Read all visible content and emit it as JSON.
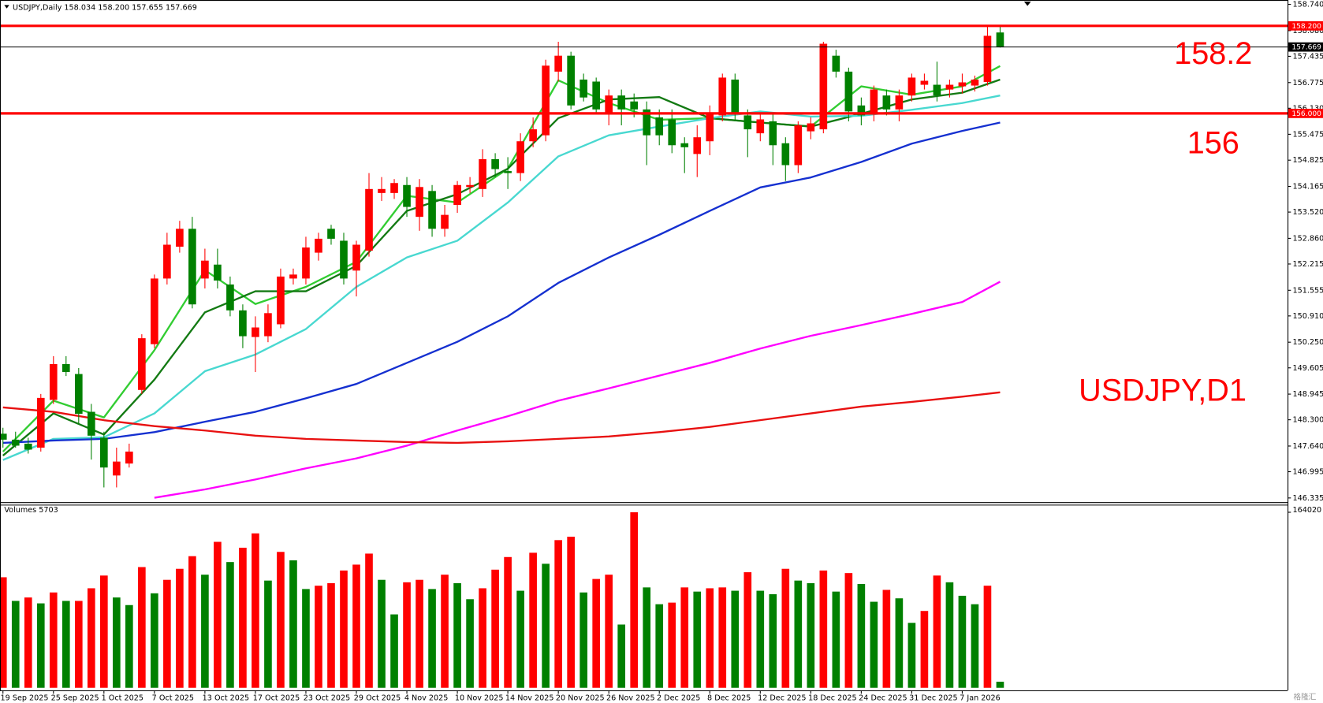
{
  "chart_data": {
    "type": "candlestick",
    "header": {
      "symbol": "USDJPY,Daily",
      "ohlc": [
        "158.034",
        "158.200",
        "157.655",
        "157.669"
      ]
    },
    "annotations": [
      "158.2",
      "156",
      "USDJPY,D1"
    ],
    "watermark": "格隆汇",
    "up_color": "#ff0000",
    "down_color": "#008000",
    "categories": [
      "19 Sep 2025",
      null,
      null,
      null,
      "25 Sep 2025",
      null,
      null,
      null,
      "1 Oct 2025",
      null,
      null,
      null,
      "7 Oct 2025",
      null,
      null,
      null,
      "13 Oct 2025",
      null,
      null,
      null,
      "17 Oct 2025",
      null,
      null,
      null,
      "23 Oct 2025",
      null,
      null,
      null,
      "29 Oct 2025",
      null,
      null,
      null,
      "4 Nov 2025",
      null,
      null,
      null,
      "10 Nov 2025",
      null,
      null,
      null,
      "14 Nov 2025",
      null,
      null,
      null,
      "20 Nov 2025",
      null,
      null,
      null,
      "26 Nov 2025",
      null,
      null,
      null,
      "2 Dec 2025",
      null,
      null,
      null,
      "8 Dec 2025",
      null,
      null,
      null,
      "12 Dec 2025",
      null,
      null,
      null,
      "18 Dec 2025",
      null,
      null,
      null,
      "24 Dec 2025",
      null,
      null,
      null,
      "31 Dec 2025",
      null,
      null,
      null,
      "7 Jan 2026",
      null,
      null,
      null
    ],
    "candles": {
      "open": [
        147.95,
        147.8,
        147.7,
        147.6,
        148.8,
        149.7,
        149.45,
        148.5,
        147.85,
        146.9,
        147.2,
        149.05,
        150.2,
        151.85,
        152.65,
        153.1,
        151.85,
        152.2,
        151.7,
        151.05,
        150.38,
        150.4,
        150.7,
        151.85,
        151.85,
        152.5,
        153.1,
        152.8,
        152.05,
        152.55,
        154.0,
        154.0,
        154.2,
        153.4,
        154.05,
        153.1,
        153.7,
        154.15,
        154.1,
        154.85,
        154.55,
        154.5,
        155.3,
        155.45,
        157.05,
        157.45,
        156.85,
        156.8,
        156.0,
        156.45,
        156.3,
        156.1,
        155.9,
        155.85,
        155.25,
        154.98,
        155.3,
        155.95,
        156.85,
        155.95,
        155.5,
        155.8,
        155.25,
        154.7,
        155.55,
        155.6,
        157.45,
        157.05,
        156.2,
        156.0,
        156.45,
        156.1,
        156.45,
        156.72,
        156.72,
        156.6,
        156.68,
        156.7,
        156.79,
        158.034
      ],
      "high": [
        148.1,
        148.0,
        147.85,
        148.95,
        149.9,
        149.9,
        149.6,
        148.7,
        148.0,
        147.6,
        147.7,
        150.45,
        151.95,
        153.0,
        153.3,
        153.4,
        152.6,
        152.6,
        151.9,
        151.2,
        150.9,
        151.2,
        152.1,
        152.1,
        152.9,
        153.0,
        153.2,
        153.0,
        152.8,
        154.5,
        154.4,
        154.35,
        154.4,
        154.35,
        154.2,
        153.7,
        154.3,
        154.4,
        155.1,
        155.0,
        154.9,
        155.5,
        155.9,
        157.35,
        157.8,
        157.55,
        157.0,
        156.9,
        156.6,
        156.6,
        156.5,
        156.3,
        156.1,
        156.1,
        155.4,
        155.7,
        156.2,
        157.0,
        157.0,
        156.1,
        156.0,
        156.0,
        155.4,
        155.8,
        155.9,
        157.8,
        157.6,
        157.15,
        156.4,
        156.7,
        156.6,
        156.6,
        157.0,
        157.0,
        157.3,
        156.85,
        157.0,
        156.95,
        158.2,
        158.2
      ],
      "low": [
        147.6,
        147.6,
        147.45,
        147.5,
        148.7,
        149.4,
        148.2,
        147.3,
        146.6,
        146.6,
        147.1,
        148.95,
        150.1,
        151.7,
        152.5,
        151.1,
        151.6,
        151.6,
        150.9,
        150.1,
        149.5,
        150.25,
        150.6,
        151.7,
        151.7,
        152.3,
        152.7,
        151.7,
        151.4,
        152.4,
        153.8,
        153.85,
        153.4,
        153.05,
        152.9,
        152.9,
        153.5,
        154.0,
        153.9,
        154.4,
        154.1,
        154.3,
        155.15,
        155.3,
        156.8,
        156.1,
        156.3,
        156.0,
        155.7,
        155.7,
        155.9,
        154.7,
        155.2,
        155.0,
        154.5,
        154.4,
        154.95,
        155.8,
        155.8,
        154.9,
        155.3,
        154.7,
        154.3,
        154.5,
        155.35,
        155.5,
        156.9,
        155.8,
        155.7,
        155.8,
        155.95,
        155.8,
        156.3,
        156.6,
        156.3,
        156.4,
        156.5,
        156.55,
        156.7,
        157.655
      ],
      "close": [
        147.8,
        147.65,
        147.55,
        148.85,
        149.7,
        149.5,
        148.45,
        147.9,
        147.1,
        147.25,
        147.5,
        150.35,
        151.85,
        152.7,
        153.1,
        151.2,
        152.3,
        151.8,
        151.05,
        150.4,
        150.62,
        150.98,
        151.9,
        151.95,
        152.63,
        152.85,
        152.85,
        151.85,
        152.7,
        154.1,
        154.1,
        154.25,
        153.65,
        154.15,
        153.1,
        153.45,
        154.2,
        154.2,
        154.85,
        154.6,
        154.5,
        155.3,
        155.6,
        157.2,
        157.45,
        156.2,
        156.4,
        156.1,
        156.45,
        156.1,
        156.1,
        155.45,
        155.45,
        155.2,
        155.15,
        155.4,
        156.0,
        156.9,
        156.0,
        155.6,
        155.85,
        155.2,
        154.7,
        155.7,
        155.75,
        157.75,
        157.05,
        156.05,
        155.95,
        156.6,
        156.1,
        156.45,
        156.9,
        156.82,
        156.45,
        156.72,
        156.78,
        156.85,
        157.95,
        157.669
      ]
    },
    "ylim": [
      146.23,
      158.85
    ],
    "yticks": [
      {
        "value": 158.74,
        "label": "158.740"
      },
      {
        "value": 158.08,
        "label": "158.080"
      },
      {
        "value": 157.435,
        "label": "157.435"
      },
      {
        "value": 156.775,
        "label": "156.775"
      },
      {
        "value": 156.13,
        "label": "156.130"
      },
      {
        "value": 155.475,
        "label": "155.475"
      },
      {
        "value": 154.825,
        "label": "154.825"
      },
      {
        "value": 154.165,
        "label": "154.165"
      },
      {
        "value": 153.52,
        "label": "153.520"
      },
      {
        "value": 152.86,
        "label": "152.860"
      },
      {
        "value": 152.215,
        "label": "152.215"
      },
      {
        "value": 151.555,
        "label": "151.555"
      },
      {
        "value": 150.91,
        "label": "150.910"
      },
      {
        "value": 150.25,
        "label": "150.250"
      },
      {
        "value": 149.605,
        "label": "149.605"
      },
      {
        "value": 148.945,
        "label": "148.945"
      },
      {
        "value": 148.3,
        "label": "148.300"
      },
      {
        "value": 147.64,
        "label": "147.640"
      },
      {
        "value": 146.995,
        "label": "146.995"
      },
      {
        "value": 146.335,
        "label": "146.335"
      }
    ],
    "levels": [
      {
        "value": 158.2,
        "label": "158.200",
        "color": "#ff0000"
      },
      {
        "value": 157.669,
        "label": "157.669",
        "color": "#000000"
      },
      {
        "value": 156.0,
        "label": "156.000",
        "color": "#ff0000"
      }
    ],
    "ma_x": [
      0,
      4,
      8,
      12,
      16,
      20,
      24,
      28,
      32,
      36,
      40,
      44,
      48,
      52,
      56,
      60,
      64,
      68,
      72,
      76,
      79
    ],
    "moving_averages": [
      {
        "color": "#32cd32",
        "values": [
          147.5,
          148.78,
          148.36,
          150.05,
          152.06,
          151.21,
          151.64,
          152.27,
          153.93,
          153.76,
          154.61,
          156.83,
          156.26,
          155.84,
          155.88,
          155.77,
          155.67,
          156.68,
          156.47,
          156.68,
          157.19
        ]
      },
      {
        "color": "#137a13",
        "values": [
          147.4,
          148.46,
          147.93,
          149.31,
          151.0,
          151.53,
          151.53,
          152.17,
          153.55,
          153.97,
          154.61,
          155.88,
          156.35,
          156.41,
          155.88,
          155.77,
          155.67,
          155.99,
          156.35,
          156.52,
          156.85
        ]
      },
      {
        "color": "#48d8d0",
        "values": [
          147.29,
          147.82,
          147.86,
          148.46,
          149.52,
          149.94,
          150.58,
          151.64,
          152.38,
          152.8,
          153.76,
          154.92,
          155.45,
          155.67,
          155.88,
          156.05,
          155.92,
          155.94,
          156.09,
          156.26,
          156.45
        ]
      },
      {
        "color": "#1530d0",
        "values": [
          147.72,
          147.78,
          147.82,
          147.99,
          148.25,
          148.5,
          148.84,
          149.2,
          149.73,
          150.26,
          150.9,
          151.74,
          152.38,
          152.95,
          153.55,
          154.14,
          154.39,
          154.78,
          155.24,
          155.56,
          155.77
        ]
      },
      {
        "color": "#ff00ff",
        "values": [
          null,
          null,
          null,
          146.34,
          146.55,
          146.8,
          147.08,
          147.33,
          147.65,
          148.03,
          148.39,
          148.78,
          149.09,
          149.41,
          149.73,
          150.09,
          150.41,
          150.68,
          150.96,
          151.26,
          151.77
        ]
      },
      {
        "color": "#e81010",
        "values": [
          148.61,
          148.5,
          148.29,
          148.14,
          148.03,
          147.9,
          147.82,
          147.78,
          147.74,
          147.72,
          147.76,
          147.82,
          147.88,
          147.99,
          148.12,
          148.29,
          148.46,
          148.63,
          148.75,
          148.88,
          148.99
        ]
      }
    ],
    "volume_label": "Volumes",
    "volumes": [
      103300,
      81200,
      84400,
      78900,
      89100,
      81200,
      81200,
      93000,
      104900,
      84400,
      77300,
      112800,
      88300,
      100900,
      111200,
      123000,
      105700,
      136400,
      117500,
      130900,
      144300,
      100200,
      127000,
      119100,
      92300,
      95400,
      97800,
      109600,
      115100,
      125400,
      100900,
      68600,
      98600,
      100900,
      92300,
      105700,
      97800,
      82800,
      93000,
      110400,
      122200,
      90700,
      126200,
      115900,
      138000,
      141200,
      89100,
      101700,
      105700,
      59100,
      164020,
      93800,
      78100,
      79600,
      93800,
      89900,
      93000,
      93800,
      90700,
      108000,
      90700,
      87500,
      111200,
      100200,
      97800,
      109600,
      89900,
      107200,
      97000,
      80400,
      91500,
      83600,
      60700,
      71800,
      104900,
      98600,
      86000,
      78100,
      95400,
      5703
    ],
    "volume_ylim": [
      0,
      164020
    ],
    "volume_yticks": [
      164020
    ]
  }
}
